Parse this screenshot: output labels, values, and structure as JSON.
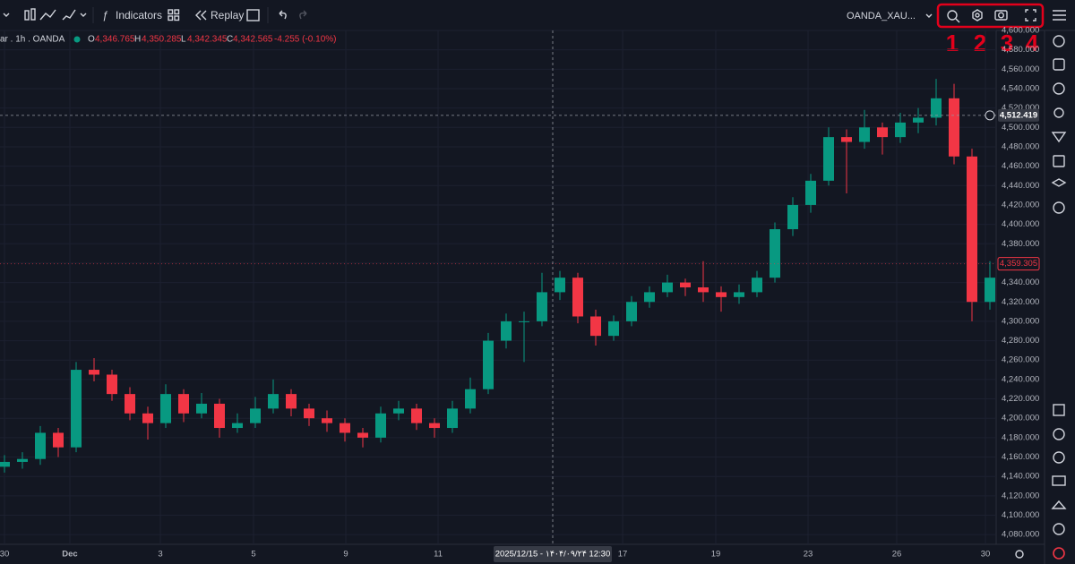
{
  "toolbar": {
    "indicators": "Indicators",
    "replay": "Replay",
    "symbol": "OANDA_XAU..."
  },
  "legend": {
    "symbol": "ar . 1h . OANDA",
    "open_key": "O",
    "open": "4,346.765",
    "high_key": "H",
    "high": "4,350.285",
    "low_key": "L",
    "low": "4,342.345",
    "close_key": "C",
    "close": "4,342.565",
    "change": "-4.255 (-0.10%)"
  },
  "annotations": [
    "1",
    "2",
    "3",
    "4"
  ],
  "chart_data": {
    "type": "candlestick",
    "up_color": "#089981",
    "down_color": "#f23645",
    "candles": [
      [
        4150,
        4162,
        4144,
        4155
      ],
      [
        4155,
        4165,
        4148,
        4158
      ],
      [
        4158,
        4192,
        4152,
        4185
      ],
      [
        4185,
        4190,
        4160,
        4170
      ],
      [
        4170,
        4258,
        4165,
        4250
      ],
      [
        4250,
        4262,
        4238,
        4245
      ],
      [
        4245,
        4250,
        4218,
        4225
      ],
      [
        4225,
        4232,
        4198,
        4205
      ],
      [
        4205,
        4212,
        4178,
        4195
      ],
      [
        4195,
        4235,
        4190,
        4225
      ],
      [
        4225,
        4230,
        4196,
        4205
      ],
      [
        4205,
        4226,
        4200,
        4215
      ],
      [
        4215,
        4220,
        4180,
        4190
      ],
      [
        4190,
        4205,
        4185,
        4195
      ],
      [
        4195,
        4222,
        4190,
        4210
      ],
      [
        4210,
        4240,
        4205,
        4225
      ],
      [
        4225,
        4230,
        4202,
        4210
      ],
      [
        4210,
        4215,
        4192,
        4200
      ],
      [
        4200,
        4208,
        4186,
        4195
      ],
      [
        4195,
        4200,
        4176,
        4185
      ],
      [
        4185,
        4190,
        4170,
        4180
      ],
      [
        4180,
        4212,
        4175,
        4205
      ],
      [
        4205,
        4218,
        4198,
        4210
      ],
      [
        4210,
        4215,
        4188,
        4195
      ],
      [
        4195,
        4200,
        4180,
        4190
      ],
      [
        4190,
        4218,
        4185,
        4210
      ],
      [
        4210,
        4242,
        4205,
        4230
      ],
      [
        4230,
        4288,
        4225,
        4280
      ],
      [
        4280,
        4308,
        4272,
        4300
      ],
      [
        4300,
        4310,
        4258,
        4300
      ],
      [
        4300,
        4350,
        4295,
        4330
      ],
      [
        4330,
        4352,
        4322,
        4345
      ],
      [
        4345,
        4350,
        4298,
        4305
      ],
      [
        4305,
        4312,
        4275,
        4285
      ],
      [
        4285,
        4306,
        4280,
        4300
      ],
      [
        4300,
        4326,
        4295,
        4320
      ],
      [
        4320,
        4336,
        4314,
        4330
      ],
      [
        4330,
        4348,
        4325,
        4340
      ],
      [
        4340,
        4344,
        4326,
        4335
      ],
      [
        4335,
        4362,
        4320,
        4330
      ],
      [
        4330,
        4336,
        4310,
        4325
      ],
      [
        4325,
        4338,
        4318,
        4330
      ],
      [
        4330,
        4352,
        4325,
        4345
      ],
      [
        4345,
        4402,
        4340,
        4395
      ],
      [
        4395,
        4428,
        4388,
        4420
      ],
      [
        4420,
        4452,
        4412,
        4445
      ],
      [
        4445,
        4500,
        4440,
        4490
      ],
      [
        4490,
        4498,
        4432,
        4485
      ],
      [
        4485,
        4518,
        4478,
        4500
      ],
      [
        4500,
        4505,
        4472,
        4490
      ],
      [
        4490,
        4515,
        4484,
        4505
      ],
      [
        4505,
        4520,
        4494,
        4510
      ],
      [
        4510,
        4550,
        4502,
        4530
      ],
      [
        4530,
        4545,
        4462,
        4470
      ],
      [
        4470,
        4478,
        4300,
        4320
      ],
      [
        4320,
        4362,
        4312,
        4345
      ]
    ],
    "xlim": [
      -0.25,
      55.35
    ],
    "xticks": [
      {
        "value": 0,
        "label": "30"
      },
      {
        "value": 3.65,
        "label": "Dec"
      },
      {
        "value": 8.7,
        "label": "3"
      },
      {
        "value": 13.9,
        "label": "5"
      },
      {
        "value": 19.05,
        "label": "9"
      },
      {
        "value": 24.2,
        "label": "11"
      },
      {
        "value": 34.5,
        "label": "17"
      },
      {
        "value": 39.7,
        "label": "19"
      },
      {
        "value": 44.85,
        "label": "23"
      },
      {
        "value": 49.8,
        "label": "26"
      },
      {
        "value": 54.75,
        "label": "30"
      }
    ],
    "ylim": [
      4070,
      4600
    ],
    "yticks": [
      {
        "value": 4080,
        "label": "4,080.000"
      },
      {
        "value": 4100,
        "label": "4,100.000"
      },
      {
        "value": 4120,
        "label": "4,120.000"
      },
      {
        "value": 4140,
        "label": "4,140.000"
      },
      {
        "value": 4160,
        "label": "4,160.000"
      },
      {
        "value": 4180,
        "label": "4,180.000"
      },
      {
        "value": 4200,
        "label": "4,200.000"
      },
      {
        "value": 4220,
        "label": "4,220.000"
      },
      {
        "value": 4240,
        "label": "4,240.000"
      },
      {
        "value": 4260,
        "label": "4,260.000"
      },
      {
        "value": 4280,
        "label": "4,280.000"
      },
      {
        "value": 4300,
        "label": "4,300.000"
      },
      {
        "value": 4320,
        "label": "4,320.000"
      },
      {
        "value": 4340,
        "label": "4,340.000"
      },
      {
        "value": 4360,
        "label": "4,360.000"
      },
      {
        "value": 4380,
        "label": "4,380.000"
      },
      {
        "value": 4400,
        "label": "4,400.000"
      },
      {
        "value": 4420,
        "label": "4,420.000"
      },
      {
        "value": 4440,
        "label": "4,440.000"
      },
      {
        "value": 4460,
        "label": "4,460.000"
      },
      {
        "value": 4480,
        "label": "4,480.000"
      },
      {
        "value": 4500,
        "label": "4,500.000"
      },
      {
        "value": 4520,
        "label": "4,520.000"
      },
      {
        "value": 4540,
        "label": "4,540.000"
      },
      {
        "value": 4560,
        "label": "4,560.000"
      },
      {
        "value": 4580,
        "label": "4,580.000"
      },
      {
        "value": 4600,
        "label": "4,600.000"
      }
    ],
    "crosshair": {
      "x": 30.6,
      "price": 4512.419,
      "price_label": "4,512.419",
      "time_label": "2025/12/15 - ۱۴۰۴/۰۹/۲۴   12:30"
    },
    "last_price": {
      "value": 4359.305,
      "label": "4,359.305"
    }
  }
}
